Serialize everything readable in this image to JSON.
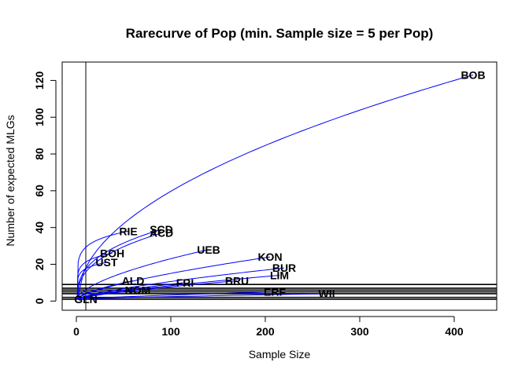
{
  "chart_data": {
    "type": "line",
    "title": "Rarecurve of Pop (min. Sample size = 5 per Pop)",
    "xlabel": "Sample Size",
    "ylabel": "Number of expected MLGs",
    "xlim": [
      -15,
      445
    ],
    "ylim": [
      -5,
      130
    ],
    "x_ticks": [
      0,
      100,
      200,
      300,
      400
    ],
    "y_ticks": [
      0,
      20,
      40,
      60,
      80,
      100,
      120
    ],
    "vline_x": 10,
    "hlines_y": [
      1,
      2,
      4,
      5,
      6,
      7,
      9
    ],
    "curve_color": "#0000ff",
    "series": [
      {
        "name": "BOB",
        "n": 420,
        "mlg": 123
      },
      {
        "name": "SCD",
        "n": 90,
        "mlg": 39
      },
      {
        "name": "ACD",
        "n": 90,
        "mlg": 37
      },
      {
        "name": "RIE",
        "n": 55,
        "mlg": 38
      },
      {
        "name": "UEB",
        "n": 140,
        "mlg": 28
      },
      {
        "name": "BOH",
        "n": 38,
        "mlg": 26
      },
      {
        "name": "UST",
        "n": 32,
        "mlg": 21
      },
      {
        "name": "KON",
        "n": 205,
        "mlg": 24
      },
      {
        "name": "BUR",
        "n": 220,
        "mlg": 18
      },
      {
        "name": "LIM",
        "n": 215,
        "mlg": 14
      },
      {
        "name": "BRU",
        "n": 170,
        "mlg": 11
      },
      {
        "name": "FRI",
        "n": 115,
        "mlg": 10
      },
      {
        "name": "ALD",
        "n": 60,
        "mlg": 11
      },
      {
        "name": "ERF",
        "n": 210,
        "mlg": 5
      },
      {
        "name": "WII",
        "n": 265,
        "mlg": 4
      },
      {
        "name": "NOM",
        "n": 65,
        "mlg": 6
      },
      {
        "name": "GLN",
        "n": 10,
        "mlg": 1
      }
    ]
  }
}
